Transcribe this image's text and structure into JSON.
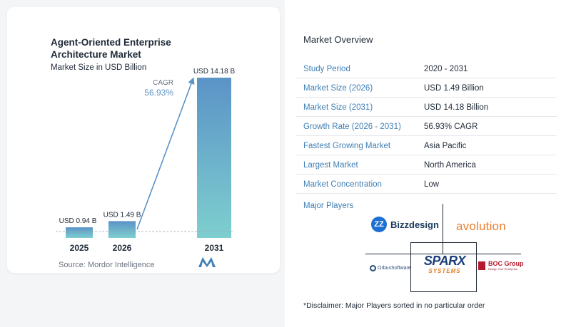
{
  "chart_data": {
    "type": "bar",
    "title": "Agent-Oriented Enterprise Architecture Market",
    "subtitle": "Market Size in USD Billion",
    "categories": [
      "2025",
      "2026",
      "2031"
    ],
    "values": [
      0.94,
      1.49,
      14.18
    ],
    "value_labels": [
      "USD 0.94 B",
      "USD 1.49 B",
      "USD 14.18 B"
    ],
    "cagr_label": "CAGR",
    "cagr_value": "56.93%",
    "ylim": [
      0,
      14.18
    ],
    "colors": {
      "bar_top": "#5b93c7",
      "bar_bottom": "#7ecfcf",
      "arrow": "#5b93c7"
    }
  },
  "source": "Source:  Mordor Intelligence",
  "overview": {
    "title": "Market Overview",
    "rows": [
      {
        "label": "Study Period",
        "value": "2020 - 2031"
      },
      {
        "label": "Market Size (2026)",
        "value": "USD 1.49 Billion"
      },
      {
        "label": "Market Size (2031)",
        "value": "USD 14.18 Billion"
      },
      {
        "label": "Growth Rate (2026 - 2031)",
        "value": "56.93% CAGR"
      },
      {
        "label": "Fastest Growing Market",
        "value": "Asia Pacific"
      },
      {
        "label": "Largest Market",
        "value": "North America"
      },
      {
        "label": "Market Concentration",
        "value": "Low"
      }
    ]
  },
  "players": {
    "title": "Major Players",
    "bizzdesign": "Bizzdesign",
    "bizzdesign_mark": "ZZ",
    "evolution": "avolution",
    "orbus": "OrbusSoftware",
    "sparx_main": "SPARX",
    "sparx_sub": "SYSTEMS",
    "boc": "BOC Group",
    "boc_tag": "Design Your Enterprise"
  },
  "disclaimer": "*Disclaimer: Major Players sorted in no particular order"
}
